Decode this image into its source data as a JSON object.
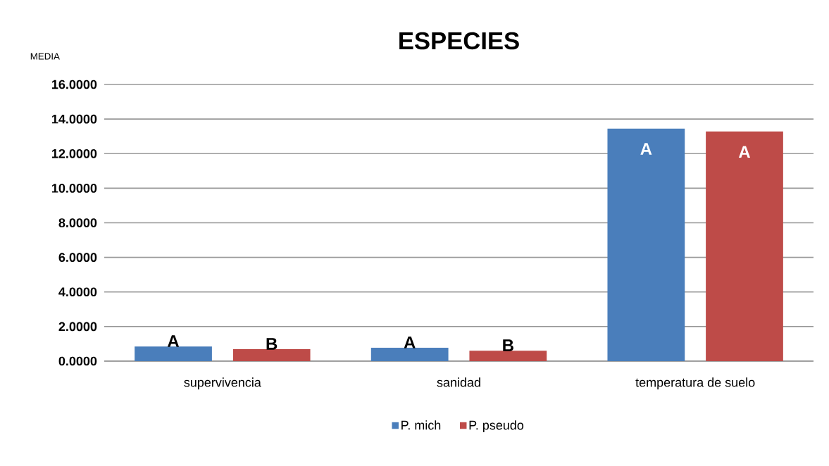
{
  "chart_data": {
    "type": "bar",
    "title": "ESPECIES",
    "ylabel": "MEDIA",
    "categories": [
      "supervivencia",
      "sanidad",
      "temperatura de suelo"
    ],
    "series": [
      {
        "name": "P. mich",
        "color": "#4a7ebb",
        "values": [
          0.85,
          0.77,
          13.45
        ],
        "value_labels": [
          "A",
          "A",
          "A"
        ]
      },
      {
        "name": "P. pseudo",
        "color": "#be4b48",
        "values": [
          0.69,
          0.6,
          13.28
        ],
        "value_labels": [
          "B",
          "B",
          "A"
        ]
      }
    ],
    "ylim": [
      0,
      16
    ],
    "yticks": [
      {
        "value": 0,
        "label": "0.0000"
      },
      {
        "value": 2,
        "label": "2.0000"
      },
      {
        "value": 4,
        "label": "4.0000"
      },
      {
        "value": 6,
        "label": "6.0000"
      },
      {
        "value": 8,
        "label": "8.0000"
      },
      {
        "value": 10,
        "label": "10.0000"
      },
      {
        "value": 12,
        "label": "12.0000"
      },
      {
        "value": 14,
        "label": "14.0000"
      },
      {
        "value": 16,
        "label": "16.0000"
      }
    ],
    "grid": "y",
    "legend": "bottom"
  }
}
